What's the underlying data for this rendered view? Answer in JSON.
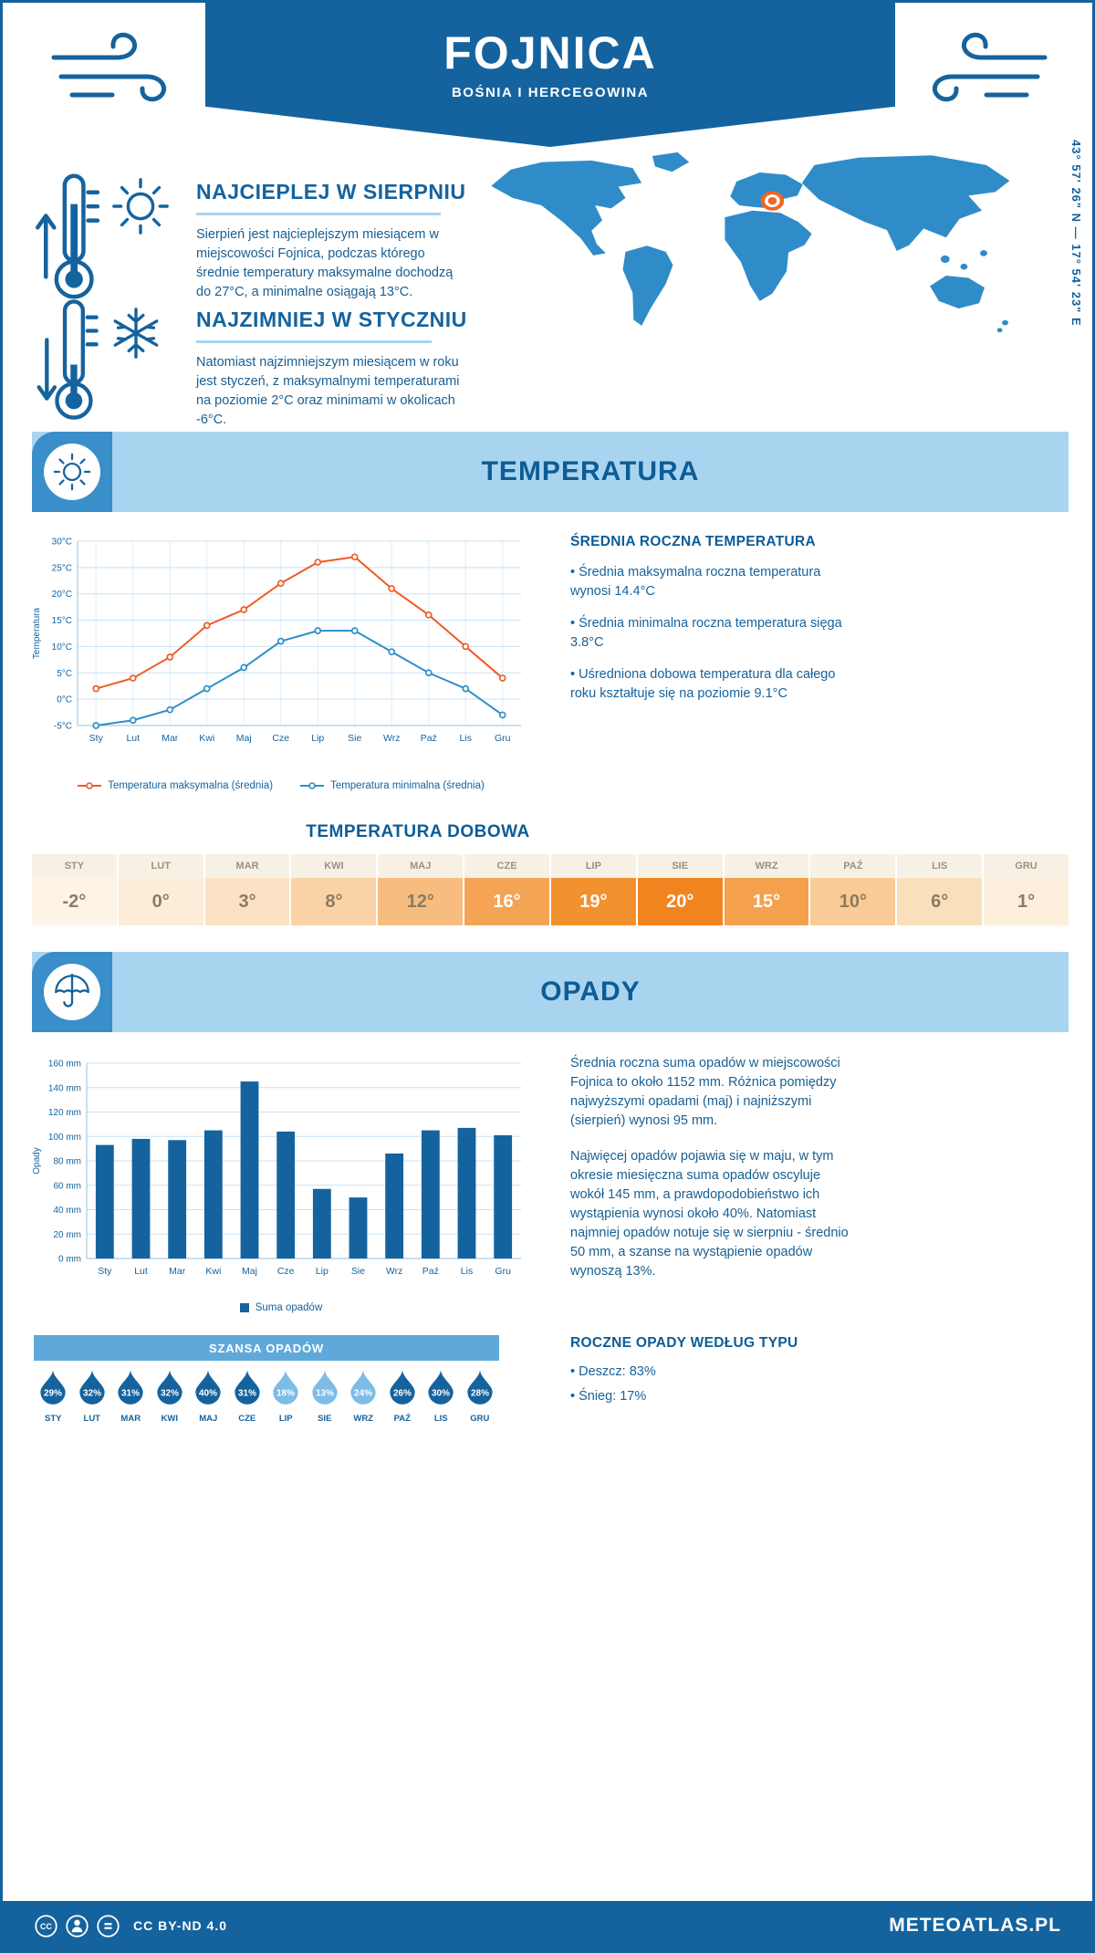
{
  "colors": {
    "primary": "#15639e",
    "dark_title": "#0d5c96",
    "banner_bg": "#a9d4f0",
    "icon_square": "#3a8ec9",
    "map_fill": "#2f8cc9",
    "marker": "#f26522",
    "max_line": "#f05b25",
    "min_line": "#2d8fc9",
    "bar": "#15639e"
  },
  "header": {
    "title": "FOJNICA",
    "subtitle": "BOŚNIA I HERCEGOWINA"
  },
  "coordinates": "43° 57' 26\" N — 17° 54' 23\" E",
  "warmest": {
    "title": "NAJCIEPLEJ W SIERPNIU",
    "text": "Sierpień jest najcieplejszym miesiącem w miejscowości Fojnica, podczas którego średnie temperatury maksymalne dochodzą do 27°C, a minimalne osiągają 13°C."
  },
  "coldest": {
    "title": "NAJZIMNIEJ W STYCZNIU",
    "text": "Natomiast najzimniejszym miesiącem w roku jest styczeń, z maksymalnymi temperaturami na poziomie 2°C oraz minimami w okolicach -6°C."
  },
  "temperature": {
    "banner": "TEMPERATURA",
    "summary_title": "ŚREDNIA ROCZNA TEMPERATURA",
    "bullets": [
      "Średnia maksymalna roczna temperatura wynosi 14.4°C",
      "Średnia minimalna roczna temperatura sięga 3.8°C",
      "Uśredniona dobowa temperatura dla całego roku kształtuje się na poziomie 9.1°C"
    ],
    "daily_title": "TEMPERATURA DOBOWA",
    "daily": {
      "months": [
        "STY",
        "LUT",
        "MAR",
        "KWI",
        "MAJ",
        "CZE",
        "LIP",
        "SIE",
        "WRZ",
        "PAŹ",
        "LIS",
        "GRU"
      ],
      "values": [
        "-2°",
        "0°",
        "3°",
        "8°",
        "12°",
        "16°",
        "19°",
        "20°",
        "15°",
        "10°",
        "6°",
        "1°"
      ],
      "bg": [
        "#fdf3e6",
        "#fcecd8",
        "#fbe2c4",
        "#f9d3a6",
        "#f7bd7e",
        "#f5a355",
        "#f3902f",
        "#f28420",
        "#f5a04d",
        "#f8cb97",
        "#fadfbc",
        "#fcf0dd"
      ],
      "fg": [
        "#8c7b64",
        "#8c7b64",
        "#8c7b64",
        "#8c7b64",
        "#8c7b64",
        "#ffffff",
        "#ffffff",
        "#ffffff",
        "#ffffff",
        "#8c7b64",
        "#8c7b64",
        "#8c7b64"
      ]
    }
  },
  "precipitation": {
    "banner": "OPADY",
    "paragraphs": [
      "Średnia roczna suma opadów w miejscowości Fojnica to około 1152 mm. Różnica pomiędzy najwyższymi opadami (maj) i najniższymi (sierpień) wynosi 95 mm.",
      "Najwięcej opadów pojawia się w maju, w tym okresie miesięczna suma opadów oscyluje wokół 145 mm, a prawdopodobieństwo ich wystąpienia wynosi około 40%. Natomiast najmniej opadów notuje się w sierpniu - średnio 50 mm, a szanse na wystąpienie opadów wynoszą 13%."
    ],
    "chance_title": "SZANSA OPADÓW",
    "chance": {
      "months": [
        "STY",
        "LUT",
        "MAR",
        "KWI",
        "MAJ",
        "CZE",
        "LIP",
        "SIE",
        "WRZ",
        "PAŹ",
        "LIS",
        "GRU"
      ],
      "values": [
        "29%",
        "32%",
        "31%",
        "32%",
        "40%",
        "31%",
        "18%",
        "13%",
        "24%",
        "26%",
        "30%",
        "28%"
      ],
      "colors": [
        "#15639e",
        "#15639e",
        "#15639e",
        "#15639e",
        "#15639e",
        "#15639e",
        "#7cbce7",
        "#7cbce7",
        "#7cbce7",
        "#15639e",
        "#15639e",
        "#15639e"
      ]
    },
    "type_title": "ROCZNE OPADY WEDŁUG TYPU",
    "type_bullets": [
      "Deszcz: 83%",
      "Śnieg: 17%"
    ]
  },
  "chart_data": [
    {
      "type": "line",
      "title": "Średnie temperatury miesięczne",
      "categories": [
        "Sty",
        "Lut",
        "Mar",
        "Kwi",
        "Maj",
        "Cze",
        "Lip",
        "Sie",
        "Wrz",
        "Paź",
        "Lis",
        "Gru"
      ],
      "series": [
        {
          "name": "Temperatura maksymalna (średnia)",
          "color": "#f05b25",
          "values": [
            2,
            4,
            8,
            14,
            17,
            22,
            26,
            27,
            21,
            16,
            10,
            4
          ]
        },
        {
          "name": "Temperatura minimalna (średnia)",
          "color": "#2d8fc9",
          "values": [
            -5,
            -4,
            -2,
            2,
            6,
            11,
            13,
            13,
            9,
            5,
            2,
            -3
          ]
        }
      ],
      "xlabel": "",
      "ylabel": "Temperatura",
      "ylim": [
        -5,
        30
      ],
      "ytick_step": 5,
      "ytick_suffix": "°C",
      "grid": true,
      "legend_position": "bottom"
    },
    {
      "type": "bar",
      "title": "Suma opadów miesięczna",
      "categories": [
        "Sty",
        "Lut",
        "Mar",
        "Kwi",
        "Maj",
        "Cze",
        "Lip",
        "Sie",
        "Wrz",
        "Paź",
        "Lis",
        "Gru"
      ],
      "values": [
        93,
        98,
        97,
        105,
        145,
        104,
        57,
        50,
        86,
        105,
        107,
        101
      ],
      "color": "#15639e",
      "legend": "Suma opadów",
      "xlabel": "",
      "ylabel": "Opady",
      "ylim": [
        0,
        160
      ],
      "ytick_step": 20,
      "ytick_suffix": " mm",
      "grid": true,
      "legend_position": "bottom"
    }
  ],
  "footer": {
    "license": "CC BY-ND 4.0",
    "brand": "METEOATLAS.PL"
  }
}
